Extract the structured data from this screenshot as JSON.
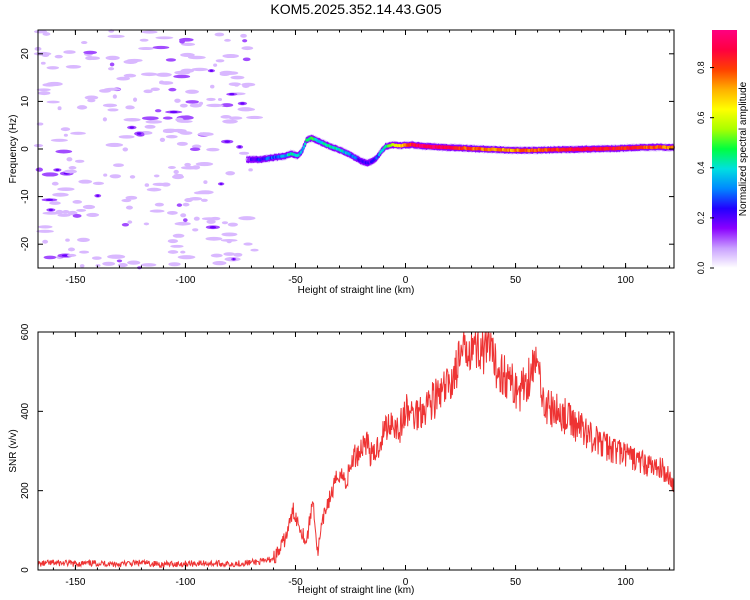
{
  "title": "KOM5.2025.352.14.43.G05",
  "chart_data": [
    {
      "type": "heatmap",
      "name": "spectrogram",
      "xlabel": "Height of straight line (km)",
      "ylabel": "Frequency (Hz)",
      "xlim": [
        -167,
        122
      ],
      "ylim": [
        -25,
        25
      ],
      "xticks": [
        -150,
        -100,
        -50,
        0,
        50,
        100
      ],
      "xtick_labels": [
        "-150",
        "-100",
        "-50",
        "0",
        "50",
        "100"
      ],
      "yticks": [
        -20,
        -10,
        0,
        10,
        20
      ],
      "ytick_labels": [
        "-20",
        "-10",
        "0",
        "10",
        "20"
      ],
      "noise_region_x": [
        -167,
        -68
      ],
      "signal_track": {
        "x": [
          -72,
          -66,
          -60,
          -55,
          -52,
          -49,
          -47,
          -45,
          -43,
          -41,
          -38,
          -34,
          -30,
          -26,
          -23,
          -20,
          -17,
          -15,
          -13,
          -11,
          -9,
          -6,
          -3,
          0,
          3,
          8,
          15,
          25,
          35,
          45,
          55,
          65,
          75,
          85,
          95,
          105,
          115,
          122
        ],
        "freq_hz": [
          -2.2,
          -2.2,
          -1.8,
          -1.5,
          -1.0,
          -1.4,
          -0.4,
          1.8,
          2.3,
          2.0,
          1.3,
          0.5,
          -0.2,
          -1.0,
          -1.8,
          -2.6,
          -3.0,
          -2.5,
          -1.8,
          -0.5,
          0.5,
          0.9,
          0.7,
          0.8,
          0.9,
          0.6,
          0.4,
          0.2,
          0.0,
          -0.2,
          -0.3,
          -0.2,
          -0.1,
          0.0,
          0.1,
          0.3,
          0.4,
          0.3
        ],
        "amplitude": [
          0.15,
          0.25,
          0.3,
          0.35,
          0.45,
          0.4,
          0.35,
          0.45,
          0.5,
          0.45,
          0.4,
          0.45,
          0.45,
          0.35,
          0.3,
          0.25,
          0.2,
          0.25,
          0.3,
          0.4,
          0.5,
          0.6,
          0.7,
          0.8,
          0.9,
          1.0,
          0.95,
          0.85,
          0.8,
          0.75,
          0.8,
          0.85,
          0.9,
          0.95,
          0.9,
          0.85,
          0.8,
          0.75
        ]
      },
      "colorbar": {
        "label": "Normalized spectral amplitude",
        "range": [
          0,
          0.95
        ],
        "ticks": [
          0.0,
          0.2,
          0.4,
          0.6,
          0.8
        ],
        "tick_labels": [
          "0.0",
          "0.2",
          "0.4",
          "0.6",
          "0.8"
        ],
        "stops": [
          "#ffffff",
          "#c9a0ff",
          "#8a00ff",
          "#2200ff",
          "#0088ff",
          "#00e0e0",
          "#00ff40",
          "#aaff00",
          "#ffff00",
          "#ffb000",
          "#ff4000",
          "#ff0040",
          "#ff0080"
        ]
      }
    },
    {
      "type": "line",
      "name": "snr",
      "xlabel": "Height of straight line (km)",
      "ylabel": "SNR (v/v)",
      "xlim": [
        -167,
        122
      ],
      "ylim": [
        0,
        600
      ],
      "xticks": [
        -150,
        -100,
        -50,
        0,
        50,
        100
      ],
      "xtick_labels": [
        "-150",
        "-100",
        "-50",
        "0",
        "50",
        "100"
      ],
      "yticks": [
        0,
        200,
        400,
        600
      ],
      "ytick_labels": [
        "0",
        "200",
        "400",
        "600"
      ],
      "color": "#ee3333",
      "x": [
        -167,
        -160,
        -150,
        -140,
        -130,
        -120,
        -110,
        -100,
        -90,
        -80,
        -70,
        -64,
        -60,
        -57,
        -54,
        -51,
        -48,
        -45,
        -42,
        -40,
        -38,
        -36,
        -33,
        -30,
        -27,
        -24,
        -21,
        -18,
        -15,
        -12,
        -9,
        -6,
        -3,
        0,
        4,
        8,
        12,
        16,
        20,
        24,
        28,
        30,
        32,
        34,
        36,
        38,
        40,
        44,
        48,
        52,
        56,
        58,
        60,
        62,
        64,
        68,
        72,
        76,
        80,
        84,
        88,
        92,
        96,
        100,
        104,
        108,
        112,
        116,
        120,
        122
      ],
      "y": [
        15,
        18,
        16,
        17,
        15,
        18,
        14,
        16,
        17,
        15,
        19,
        22,
        30,
        50,
        90,
        150,
        110,
        70,
        180,
        40,
        110,
        160,
        200,
        250,
        220,
        280,
        300,
        330,
        280,
        320,
        360,
        380,
        350,
        400,
        390,
        410,
        430,
        440,
        470,
        520,
        560,
        580,
        550,
        570,
        540,
        560,
        520,
        500,
        470,
        450,
        490,
        520,
        510,
        460,
        410,
        400,
        390,
        370,
        360,
        340,
        320,
        310,
        300,
        290,
        280,
        270,
        260,
        255,
        240,
        205
      ]
    }
  ]
}
